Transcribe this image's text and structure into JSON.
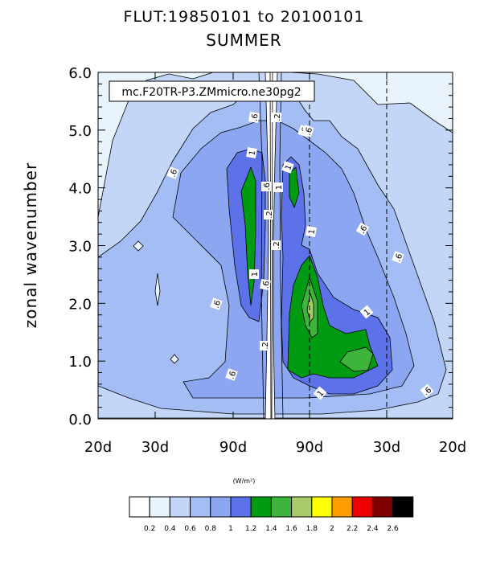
{
  "title": "FLUT:19850101 to 20100101",
  "subtitle": "SUMMER",
  "chart_data": {
    "type": "heatmap",
    "subtype": "filled-contour",
    "ylabel": "zonal wavenumber",
    "xlabel": "",
    "annotation": "mc.F20TR-P3.ZMmicro.ne30pg2",
    "x_tick_labels": [
      "20d",
      "30d",
      "90d",
      "90d",
      "30d",
      "20d"
    ],
    "y_tick_labels": [
      "0.0",
      "1.0",
      "2.0",
      "3.0",
      "4.0",
      "5.0",
      "6.0"
    ],
    "ylim": [
      0,
      6
    ],
    "colorbar": {
      "unit_label": "(W/m²)",
      "levels": [
        "0.2",
        "0.4",
        "0.6",
        "0.8",
        "1",
        "1.2",
        "1.4",
        "1.6",
        "1.8",
        "2",
        "2.2",
        "2.4",
        "2.6"
      ],
      "colors": [
        "#ffffff",
        "#e8f3fc",
        "#c3d6f7",
        "#a4bdf4",
        "#8da6f1",
        "#5d72e9",
        "#009a13",
        "#3db53a",
        "#a8cc6a",
        "#ffff00",
        "#ff9c00",
        "#ee0000",
        "#7f0000",
        "#000000"
      ]
    },
    "contour_labels": [
      ".6",
      ".6",
      ".6",
      ".6",
      ".6",
      ".6",
      ".6",
      ".6",
      ".6",
      ".2",
      ".2",
      ".2",
      ".2",
      "1",
      "1",
      "1",
      "1",
      "1",
      "1",
      "1",
      ".6",
      ".6"
    ]
  }
}
